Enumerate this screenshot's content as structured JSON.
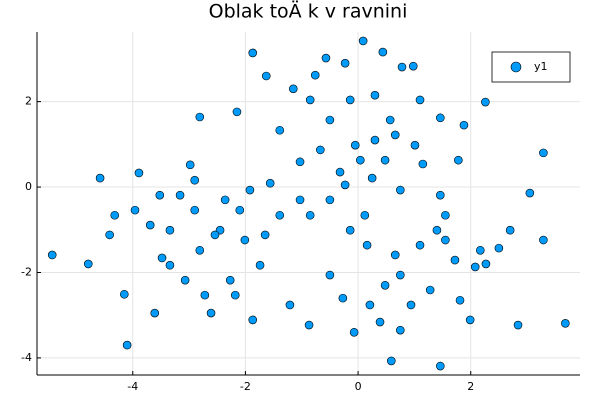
{
  "chart_data": {
    "type": "scatter",
    "title": "Oblak toÄ k v ravnini",
    "series": [
      {
        "name": "y1",
        "color": "#009af9",
        "x": [
          -5.43,
          -4.79,
          -4.1,
          -4.15,
          -4.58,
          -3.61,
          -1.87,
          0.09,
          0.44,
          0.59,
          1.46,
          3.68,
          3.29,
          2.26,
          -0.57,
          -1.63,
          3.05,
          3.29,
          2.84,
          -0.87,
          -1.87,
          -2.61,
          -3.48,
          -3.96,
          -3.89,
          -2.81,
          -2.15,
          -1.15,
          -0.23,
          0.78,
          0.98,
          1.46,
          1.88,
          1.78,
          1.15,
          2.08,
          2.27,
          2.5,
          1.55,
          1.4,
          0.94,
          0.39,
          -0.07,
          -0.27,
          -1.03,
          -1.39,
          -1.56,
          -1.03,
          -0.67,
          -0.32,
          -0.05,
          0.25,
          0.48,
          0.75,
          0.16,
          0.66,
          1.1,
          1.55,
          0.75,
          1.28,
          0.48,
          1.81,
          -3.16,
          -2.9,
          -2.45,
          -2.81,
          -3.34,
          -2.01,
          -1.74,
          -2.27,
          -3.07,
          -3.69,
          -4.32,
          -2.36,
          -1.92,
          -3.52,
          -0.5,
          -1.39,
          -0.85,
          -0.14,
          0.57,
          1.01,
          -0.5,
          -0.85,
          -1.21,
          -0.5,
          1.72,
          2.7,
          2.17,
          1.99,
          0.75,
          0.21,
          -2.54,
          -2.9,
          -2.98,
          -2.1,
          -1.65,
          -3.34,
          -4.41,
          -2.72,
          -2.18,
          0.12,
          -0.14,
          1.46,
          0.3,
          0.66,
          0.04,
          -0.23,
          1.1,
          -0.76,
          0.3
        ],
        "values": [
          -1.59,
          -1.8,
          -3.7,
          -2.51,
          0.21,
          -2.95,
          3.14,
          3.42,
          3.16,
          -4.07,
          -4.19,
          -3.19,
          0.8,
          1.99,
          3.02,
          2.6,
          -0.14,
          -1.24,
          -3.23,
          -3.23,
          -3.11,
          -2.95,
          -1.66,
          -0.54,
          0.33,
          1.64,
          1.76,
          2.3,
          2.9,
          2.81,
          2.83,
          1.62,
          1.45,
          0.63,
          0.54,
          -1.87,
          -1.8,
          -1.43,
          -0.66,
          -1.01,
          -2.76,
          -3.16,
          -3.4,
          -2.6,
          -0.3,
          -0.66,
          0.09,
          0.59,
          0.87,
          0.35,
          0.98,
          0.21,
          0.63,
          -0.07,
          -1.36,
          -1.59,
          -1.36,
          -1.24,
          -2.06,
          -2.41,
          -2.3,
          -2.65,
          -0.19,
          -0.54,
          -1.01,
          -1.48,
          -1.01,
          -1.24,
          -1.83,
          -2.18,
          -2.18,
          -0.89,
          -0.66,
          -0.3,
          -0.07,
          -0.19,
          1.57,
          1.33,
          2.04,
          2.04,
          1.57,
          0.98,
          -0.3,
          -0.66,
          -2.76,
          -2.06,
          -1.71,
          -1.01,
          -1.48,
          -3.11,
          -3.35,
          -2.76,
          -1.12,
          0.16,
          0.52,
          -0.54,
          -1.12,
          -1.83,
          -1.12,
          -2.53,
          -2.53,
          -0.66,
          -1.01,
          -0.19,
          1.1,
          1.22,
          0.63,
          0.05,
          2.04,
          2.62,
          2.15
        ]
      }
    ],
    "xlim": [
      -5.7,
      3.94
    ],
    "ylim": [
      -4.4,
      3.63
    ],
    "xticks": [
      -4,
      -2,
      0,
      2
    ],
    "yticks": [
      -4,
      -2,
      0,
      2
    ],
    "grid": true,
    "legend": "top-right"
  }
}
